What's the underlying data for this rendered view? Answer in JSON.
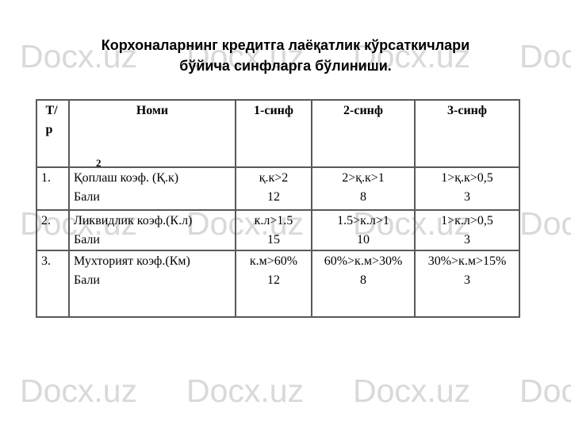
{
  "watermark": {
    "text": "Docx.uz",
    "color": "#d9d9d9"
  },
  "title": {
    "line1": "Корхоналарнинг кредитга лаёқатлик кўрсаткичлари",
    "line2": "бўйича синфларга бўлиниши."
  },
  "table": {
    "headers": {
      "col0": "Т/р",
      "col1": "Номи",
      "col2": "1-синф",
      "col3": "2-синф",
      "col4": "3-синф"
    },
    "footnote_mark": "2",
    "rows": [
      {
        "num": "1.",
        "name": "Қоплаш коэф. (Қ.к)",
        "label": "Бали",
        "class1": {
          "cond": "қ.к>2",
          "score": "12"
        },
        "class2": {
          "cond": "2>қ.к>1",
          "score": "8"
        },
        "class3": {
          "cond": "1>қ.к>0,5",
          "score": "3"
        }
      },
      {
        "num": "2.",
        "name": "Ликвидлик коэф.(К.л)",
        "label": "Бали",
        "class1": {
          "cond": "к.л>1.5",
          "score": "15"
        },
        "class2": {
          "cond": "1.5>к.л>1",
          "score": "10"
        },
        "class3": {
          "cond": "1>к.л>0,5",
          "score": "3"
        }
      },
      {
        "num": "3.",
        "name": "Мухторият коэф.(Км)",
        "label": "Бали",
        "class1": {
          "cond": "к.м>60%",
          "score": "12"
        },
        "class2": {
          "cond": "60%>к.м>30%",
          "score": "8"
        },
        "class3": {
          "cond": "30%>к.м>15%",
          "score": "3"
        }
      }
    ]
  }
}
